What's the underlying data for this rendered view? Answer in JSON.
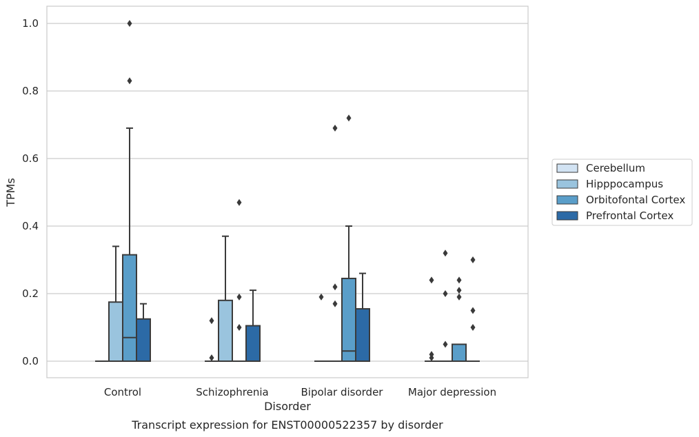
{
  "caption": "Transcript expression for ENST00000522357 by disorder",
  "chart_data": {
    "type": "box",
    "xlabel": "Disorder",
    "ylabel": "TPMs",
    "ylim": [
      -0.05,
      1.05
    ],
    "yticks": [
      "0.0",
      "0.2",
      "0.4",
      "0.6",
      "0.8",
      "1.0"
    ],
    "grid": true,
    "legend_position": "right",
    "categories": [
      "Control",
      "Schizophrenia",
      "Bipolar disorder",
      "Major depression"
    ],
    "series": [
      {
        "name": "Cerebellum",
        "color": "#d2e3f3",
        "boxes": [
          {
            "q1": 0,
            "median": 0,
            "q3": 0,
            "whisker_low": 0,
            "whisker_high": 0,
            "outliers": []
          },
          {
            "q1": 0,
            "median": 0,
            "q3": 0,
            "whisker_low": 0,
            "whisker_high": 0,
            "outliers": [
              0.01,
              0.12
            ]
          },
          {
            "q1": 0,
            "median": 0,
            "q3": 0,
            "whisker_low": 0,
            "whisker_high": 0,
            "outliers": [
              0.19
            ]
          },
          {
            "q1": 0,
            "median": 0,
            "q3": 0,
            "whisker_low": 0,
            "whisker_high": 0,
            "outliers": [
              0.01,
              0.02,
              0.24
            ]
          }
        ]
      },
      {
        "name": "Hipppocampus",
        "color": "#9ac4de",
        "boxes": [
          {
            "q1": 0,
            "median": 0,
            "q3": 0.175,
            "whisker_low": 0,
            "whisker_high": 0.34,
            "outliers": []
          },
          {
            "q1": 0,
            "median": 0,
            "q3": 0.18,
            "whisker_low": 0,
            "whisker_high": 0.37,
            "outliers": []
          },
          {
            "q1": 0,
            "median": 0,
            "q3": 0,
            "whisker_low": 0,
            "whisker_high": 0,
            "outliers": [
              0.17,
              0.22,
              0.69
            ]
          },
          {
            "q1": 0,
            "median": 0,
            "q3": 0,
            "whisker_low": 0,
            "whisker_high": 0,
            "outliers": [
              0.05,
              0.2,
              0.32
            ]
          }
        ]
      },
      {
        "name": "Orbitofontal Cortex",
        "color": "#5a9ec9",
        "boxes": [
          {
            "q1": 0,
            "median": 0.07,
            "q3": 0.315,
            "whisker_low": 0,
            "whisker_high": 0.69,
            "outliers": [
              0.83,
              1.0
            ]
          },
          {
            "q1": 0,
            "median": 0,
            "q3": 0,
            "whisker_low": 0,
            "whisker_high": 0,
            "outliers": [
              0.1,
              0.19,
              0.47
            ]
          },
          {
            "q1": 0,
            "median": 0.03,
            "q3": 0.245,
            "whisker_low": 0,
            "whisker_high": 0.4,
            "outliers": [
              0.72
            ]
          },
          {
            "q1": 0,
            "median": 0,
            "q3": 0.05,
            "whisker_low": 0,
            "whisker_high": 0.05,
            "outliers": [
              0.19,
              0.21,
              0.24
            ]
          }
        ]
      },
      {
        "name": "Prefrontal Cortex",
        "color": "#2c6aa6",
        "boxes": [
          {
            "q1": 0,
            "median": 0,
            "q3": 0.125,
            "whisker_low": 0,
            "whisker_high": 0.17,
            "outliers": []
          },
          {
            "q1": 0,
            "median": 0,
            "q3": 0.105,
            "whisker_low": 0,
            "whisker_high": 0.21,
            "outliers": []
          },
          {
            "q1": 0,
            "median": 0,
            "q3": 0.155,
            "whisker_low": 0,
            "whisker_high": 0.26,
            "outliers": []
          },
          {
            "q1": 0,
            "median": 0,
            "q3": 0,
            "whisker_low": 0,
            "whisker_high": 0,
            "outliers": [
              0.1,
              0.15,
              0.3
            ]
          }
        ]
      }
    ]
  }
}
